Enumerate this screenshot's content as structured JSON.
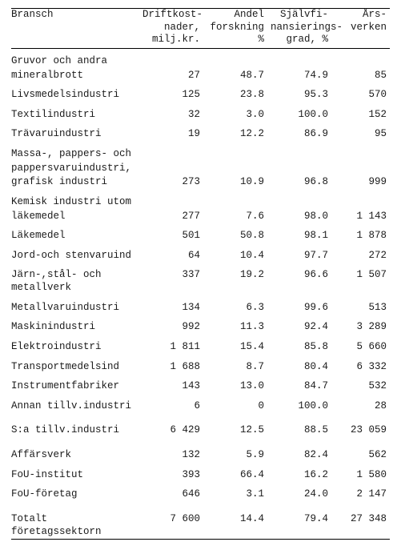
{
  "columns": {
    "c1": "Bransch",
    "c2": "Driftkost-\nnader,\nmilj.kr.",
    "c3": "Andel\nforskning\n%",
    "c4": "Självfi-\nnansierings-\ngrad, %",
    "c5": "Års-\nverken"
  },
  "rows": [
    {
      "label": "Gruvor och andra\nmineralbrott",
      "v": [
        "27",
        "48.7",
        "74.9",
        "85"
      ],
      "gap": true,
      "multiline": true
    },
    {
      "label": "Livsmedelsindustri",
      "v": [
        "125",
        "23.8",
        "95.3",
        "570"
      ],
      "gap": true
    },
    {
      "label": "Textilindustri",
      "v": [
        "32",
        "3.0",
        "100.0",
        "152"
      ],
      "gap": true
    },
    {
      "label": "Trävaruindustri",
      "v": [
        "19",
        "12.2",
        "86.9",
        "95"
      ],
      "gap": true
    },
    {
      "label": "Massa-, pappers- och\npappersvaruindustri,\ngrafisk industri",
      "v": [
        "273",
        "10.9",
        "96.8",
        "999"
      ],
      "gap": true,
      "multiline": true
    },
    {
      "label": "Kemisk industri utom\nläkemedel",
      "v": [
        "277",
        "7.6",
        "98.0",
        "1 143"
      ],
      "gap": true,
      "multiline": true
    },
    {
      "label": "Läkemedel",
      "v": [
        "501",
        "50.8",
        "98.1",
        "1 878"
      ],
      "gap": true
    },
    {
      "label": "Jord-och stenvaruind",
      "v": [
        "64",
        "10.4",
        "97.7",
        "272"
      ],
      "gap": true
    },
    {
      "label": "Järn-,stål- och metallverk",
      "v": [
        "337",
        "19.2",
        "96.6",
        "1 507"
      ],
      "gap": true
    },
    {
      "label": "Metallvaruindustri",
      "v": [
        "134",
        "6.3",
        "99.6",
        "513"
      ],
      "gap": true
    },
    {
      "label": "Maskinindustri",
      "v": [
        "992",
        "11.3",
        "92.4",
        "3 289"
      ],
      "gap": true
    },
    {
      "label": "Elektroindustri",
      "v": [
        "1 811",
        "15.4",
        "85.8",
        "5 660"
      ],
      "gap": true
    },
    {
      "label": "Transportmedelsind",
      "v": [
        "1 688",
        "8.7",
        "80.4",
        "6 332"
      ],
      "gap": true
    },
    {
      "label": "Instrumentfabriker",
      "v": [
        "143",
        "13.0",
        "84.7",
        "532"
      ],
      "gap": true
    },
    {
      "label": "Annan tillv.industri",
      "v": [
        "6",
        "0",
        "100.0",
        "28"
      ],
      "gap": true
    },
    {
      "label": "S:a tillv.industri",
      "v": [
        "6 429",
        "12.5",
        "88.5",
        "23 059"
      ],
      "biggap": true
    },
    {
      "label": "Affärsverk",
      "v": [
        "132",
        "5.9",
        "82.4",
        "562"
      ],
      "biggap": true
    },
    {
      "label": "FoU-institut",
      "v": [
        "393",
        "66.4",
        "16.2",
        "1 580"
      ],
      "gap": true
    },
    {
      "label": "FoU-företag",
      "v": [
        "646",
        "3.1",
        "24.0",
        "2 147"
      ],
      "gap": true
    },
    {
      "label": "Totalt företagssektorn",
      "v": [
        "7 600",
        "14.4",
        "79.4",
        "27 348"
      ],
      "biggap": true
    }
  ]
}
